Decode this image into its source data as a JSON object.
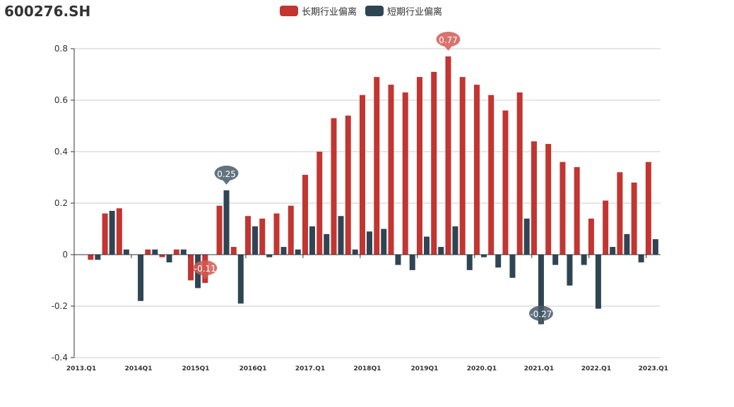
{
  "chart_data": {
    "type": "bar",
    "title": "600276.SH",
    "legend_position": "top-center",
    "xlabel": "",
    "ylabel": "",
    "ylim": [
      -0.4,
      0.8
    ],
    "yticks": [
      "-0.4",
      "-0.2",
      "0",
      "0.2",
      "0.4",
      "0.6",
      "0.8"
    ],
    "ytick_values": [
      -0.4,
      -0.2,
      0,
      0.2,
      0.4,
      0.6,
      0.8
    ],
    "grid": true,
    "category_count": 41,
    "tick_labels": [
      {
        "index": 0,
        "label": "2013.Q1"
      },
      {
        "index": 4,
        "label": "2014Q1"
      },
      {
        "index": 8,
        "label": "2015Q1"
      },
      {
        "index": 12,
        "label": "2016Q1"
      },
      {
        "index": 16,
        "label": "2017.Q1"
      },
      {
        "index": 20,
        "label": "2018Q1"
      },
      {
        "index": 24,
        "label": "2019Q1"
      },
      {
        "index": 28,
        "label": "2020.Q1"
      },
      {
        "index": 32,
        "label": "2021.Q1"
      },
      {
        "index": 36,
        "label": "2022.Q1"
      },
      {
        "index": 40,
        "label": "2023.Q1"
      }
    ],
    "series": [
      {
        "name": "长期行业偏离",
        "color": "#c23531",
        "values": [
          null,
          -0.02,
          0.16,
          0.18,
          0,
          0.02,
          -0.01,
          0.02,
          -0.1,
          -0.11,
          0.19,
          0.03,
          0.15,
          0.14,
          0.16,
          0.19,
          0.31,
          0.4,
          0.53,
          0.54,
          0.62,
          0.69,
          0.66,
          0.63,
          0.69,
          0.71,
          0.77,
          0.69,
          0.66,
          0.62,
          0.56,
          0.63,
          0.44,
          0.43,
          0.36,
          0.34,
          0.14,
          0.21,
          0.32,
          0.28,
          0.36
        ],
        "markers": [
          {
            "type": "max",
            "index": 26,
            "label": "0.77"
          },
          {
            "type": "min",
            "index": 9,
            "label": "-0.11"
          }
        ]
      },
      {
        "name": "短期行业偏离",
        "color": "#2f4554",
        "values": [
          null,
          -0.02,
          0.17,
          0.02,
          -0.18,
          0.02,
          -0.03,
          0.02,
          -0.13,
          0,
          0.25,
          -0.19,
          0.11,
          -0.01,
          0.03,
          0.02,
          0.11,
          0.08,
          0.15,
          0.02,
          0.09,
          0.1,
          -0.04,
          -0.06,
          0.07,
          0.03,
          0.11,
          -0.06,
          -0.01,
          -0.05,
          -0.09,
          0.14,
          -0.27,
          -0.04,
          -0.12,
          -0.04,
          -0.21,
          0.03,
          0.08,
          -0.03,
          0.06
        ],
        "markers": [
          {
            "type": "max",
            "index": 10,
            "label": "0.25"
          },
          {
            "type": "min",
            "index": 32,
            "label": "-0.27"
          }
        ]
      }
    ]
  }
}
